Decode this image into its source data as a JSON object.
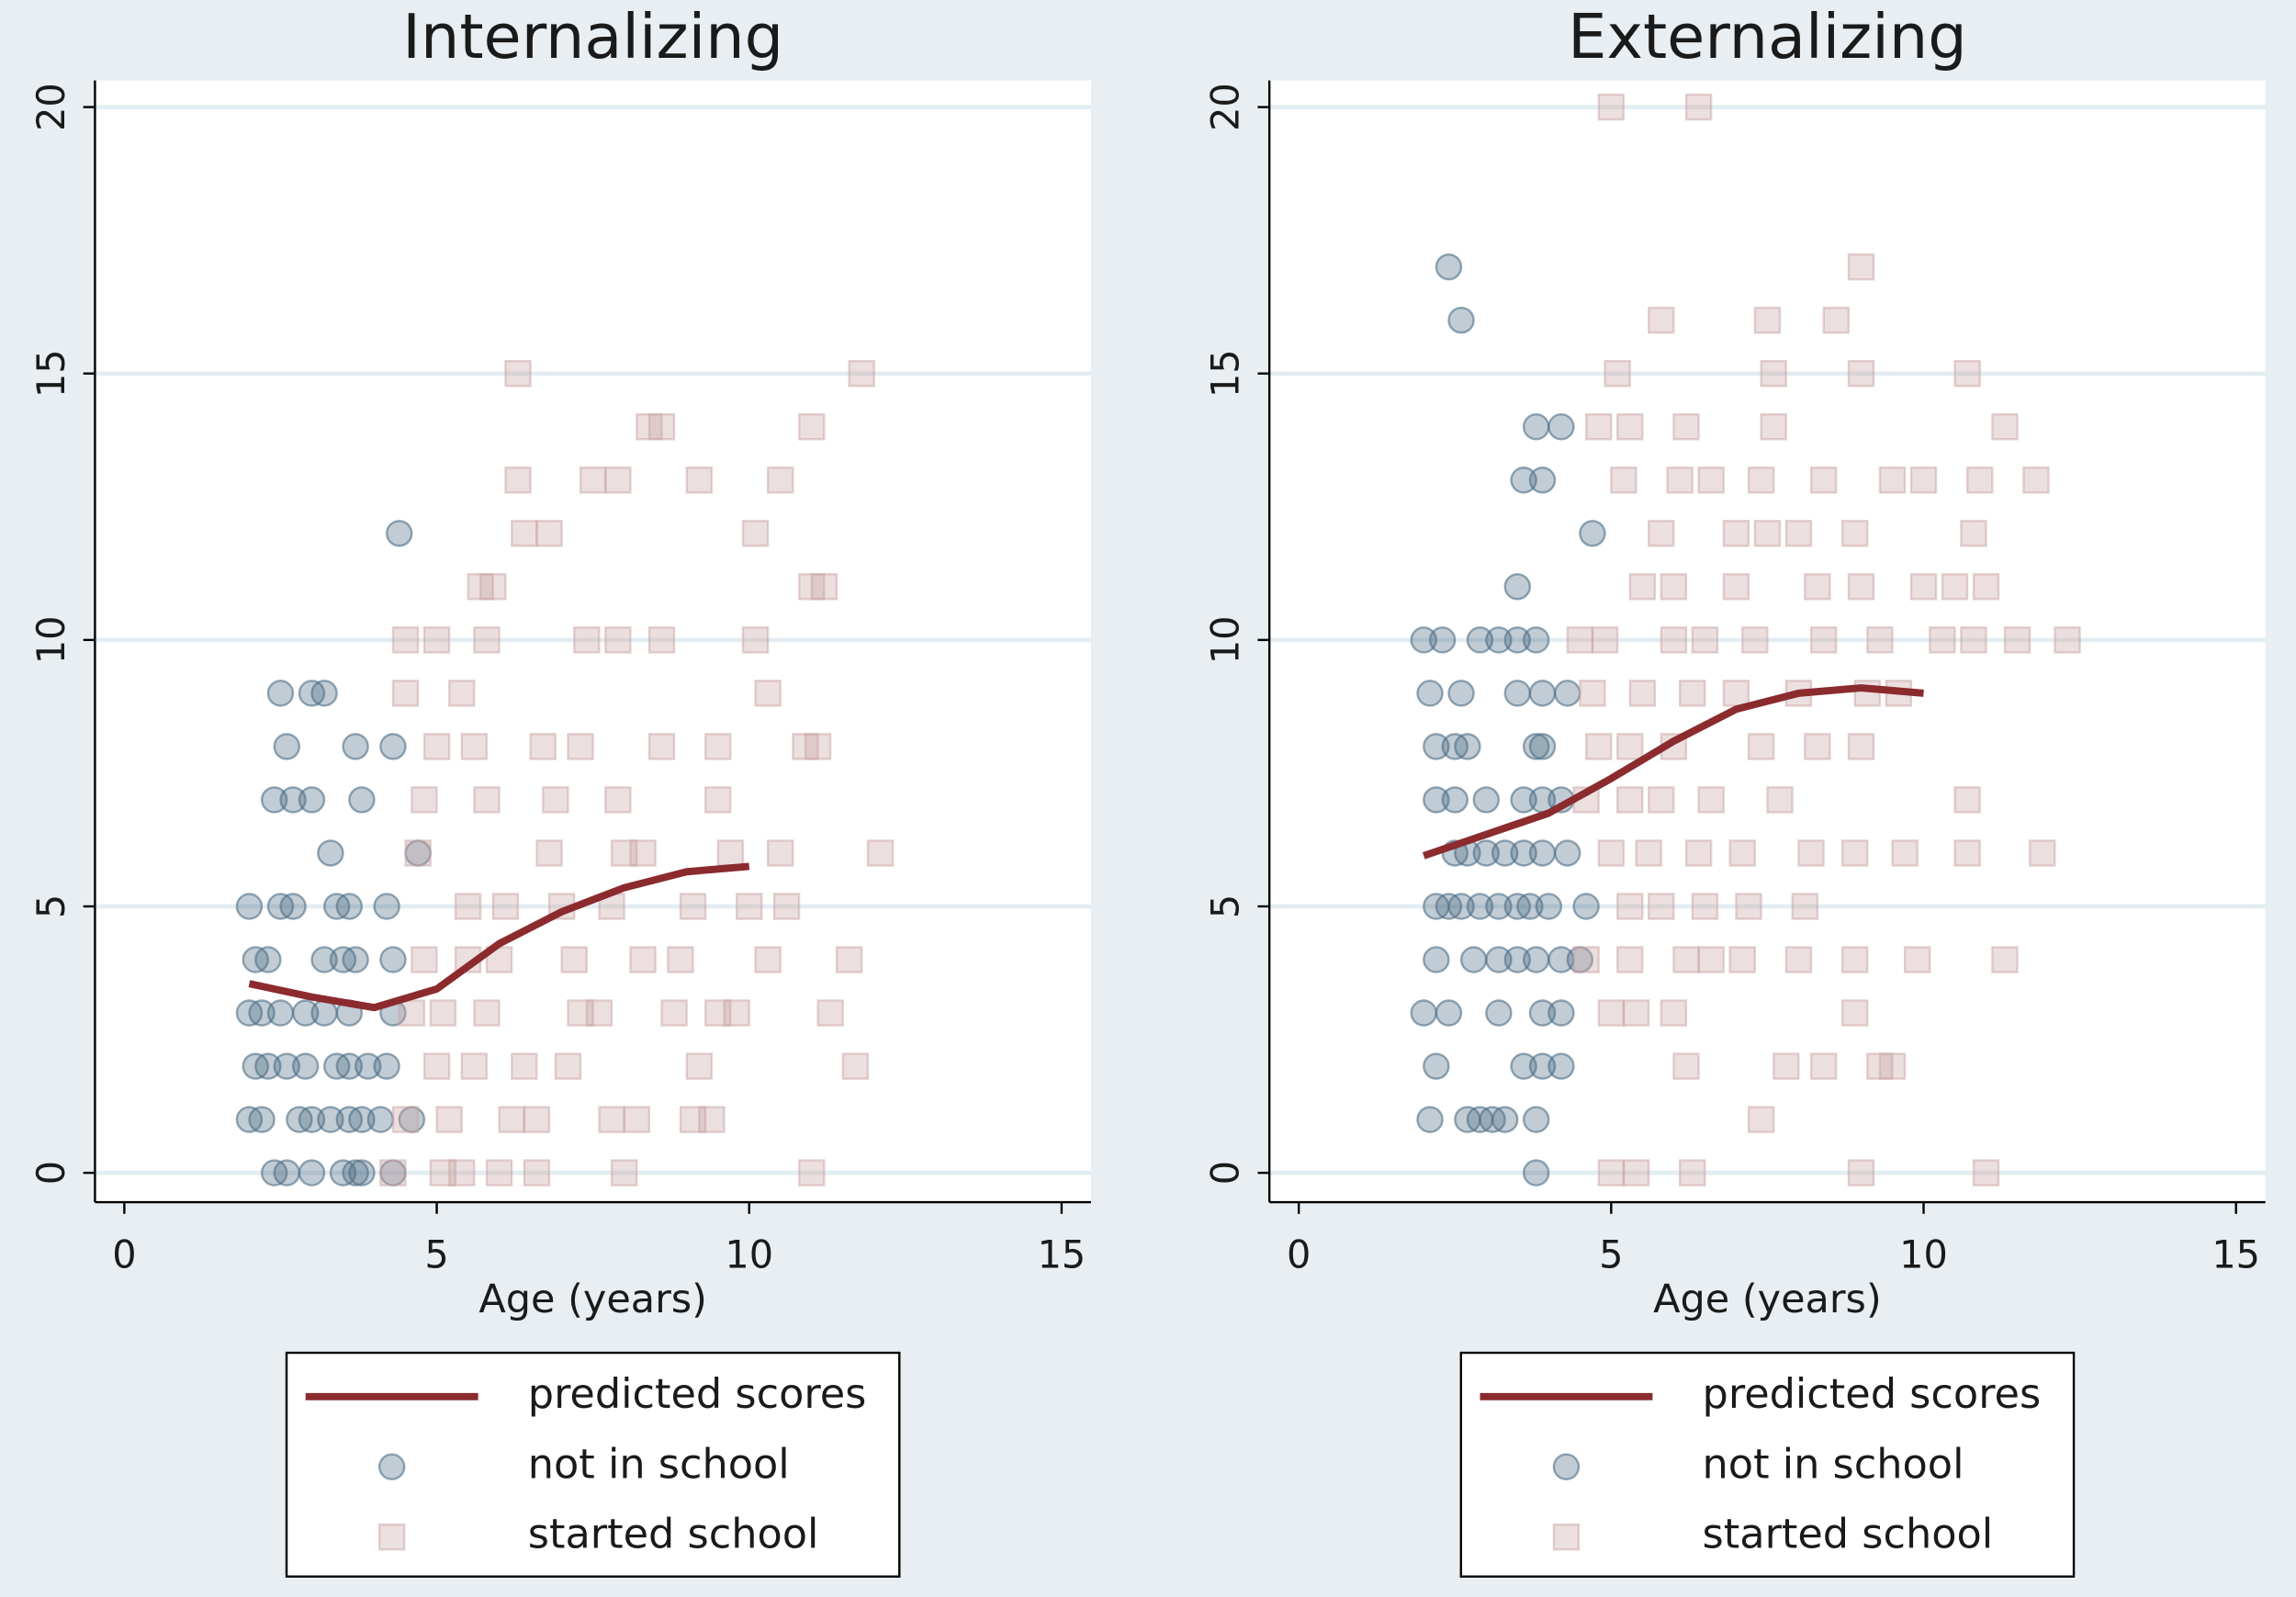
{
  "chart_data": [
    {
      "type": "scatter",
      "title": "Internalizing",
      "x_label": "Age (years)",
      "xlim": [
        -0.47,
        15.47
      ],
      "ylim": [
        -0.55,
        20.5
      ],
      "xticks": [
        0,
        5,
        10,
        15
      ],
      "yticks": [
        0,
        5,
        10,
        15,
        20
      ],
      "grid": true,
      "legend": "bottom",
      "series": [
        {
          "name": "predicted scores",
          "marker": "line",
          "color": "#8b2b2e",
          "x": [
            2,
            3,
            4,
            5,
            6,
            7,
            8,
            9,
            10
          ],
          "values": [
            3.55,
            3.3,
            3.1,
            3.45,
            4.3,
            4.9,
            5.35,
            5.65,
            5.75
          ]
        },
        {
          "name": "not in school",
          "marker": "circle",
          "color": "#4e6e86",
          "x": [
            2.4,
            2.6,
            3.0,
            3.5,
            3.7,
            3.8,
            4.3,
            2.0,
            2.2,
            2.8,
            3.0,
            3.3,
            3.6,
            3.8,
            4.1,
            4.6,
            2.1,
            2.3,
            2.6,
            2.9,
            3.4,
            3.6,
            3.9,
            4.2,
            2.0,
            2.2,
            2.5,
            2.9,
            3.2,
            3.6,
            4.3,
            2.1,
            2.3,
            3.2,
            3.5,
            3.7,
            4.3,
            2.0,
            2.5,
            2.7,
            3.4,
            3.6,
            4.2,
            3.3,
            4.7,
            2.4,
            2.7,
            3.0,
            3.8,
            2.6,
            3.7,
            4.3,
            2.5,
            3.0,
            3.2,
            4.4
          ],
          "values": [
            0,
            0,
            0,
            0,
            0,
            0,
            0,
            1,
            1,
            1,
            1,
            1,
            1,
            1,
            1,
            1,
            2,
            2,
            2,
            2,
            2,
            2,
            2,
            2,
            3,
            3,
            3,
            3,
            3,
            3,
            3,
            4,
            4,
            4,
            4,
            4,
            4,
            5,
            5,
            5,
            5,
            5,
            5,
            6,
            6,
            7,
            7,
            7,
            7,
            8,
            8,
            8,
            9,
            9,
            9,
            12
          ]
        },
        {
          "name": "started school",
          "marker": "square",
          "color": "#c9a3a3",
          "x": [
            4.3,
            5.1,
            5.4,
            6.0,
            6.6,
            8.0,
            11.0,
            4.5,
            5.2,
            6.2,
            6.6,
            7.8,
            8.2,
            9.1,
            9.4,
            5.0,
            5.6,
            6.4,
            7.1,
            9.2,
            11.7,
            4.6,
            5.1,
            5.8,
            7.3,
            7.6,
            8.8,
            9.5,
            9.8,
            11.3,
            4.8,
            5.5,
            6.0,
            7.2,
            8.3,
            8.9,
            10.3,
            11.6,
            5.5,
            6.1,
            7.0,
            7.8,
            9.1,
            10.0,
            10.6,
            4.7,
            6.8,
            8.0,
            8.3,
            9.7,
            10.5,
            12.1,
            4.8,
            5.8,
            6.9,
            7.9,
            9.5,
            5.0,
            5.6,
            6.7,
            7.3,
            8.6,
            9.5,
            10.9,
            11.1,
            4.5,
            5.4,
            10.3,
            4.5,
            5.0,
            5.8,
            7.4,
            7.9,
            8.6,
            10.1,
            5.7,
            5.9,
            11.0,
            11.2,
            6.4,
            6.8,
            10.1,
            6.3,
            7.5,
            7.9,
            9.2,
            10.5,
            8.4,
            8.6,
            11.0,
            6.3,
            11.8
          ],
          "values": [
            0,
            0,
            0,
            0,
            0,
            0,
            0,
            1,
            1,
            1,
            1,
            1,
            1,
            1,
            1,
            2,
            2,
            2,
            2,
            2,
            2,
            3,
            3,
            3,
            3,
            3,
            3,
            3,
            3,
            3,
            4,
            4,
            4,
            4,
            4,
            4,
            4,
            4,
            5,
            5,
            5,
            5,
            5,
            5,
            5,
            6,
            6,
            6,
            6,
            6,
            6,
            6,
            7,
            7,
            7,
            7,
            7,
            8,
            8,
            8,
            8,
            8,
            8,
            8,
            8,
            9,
            9,
            9,
            10,
            10,
            10,
            10,
            10,
            10,
            10,
            11,
            11,
            11,
            11,
            12,
            12,
            12,
            13,
            13,
            13,
            13,
            13,
            14,
            14,
            14,
            15,
            15
          ]
        }
      ]
    },
    {
      "type": "scatter",
      "title": "Externalizing",
      "x_label": "Age (years)",
      "xlim": [
        -0.47,
        15.47
      ],
      "ylim": [
        -0.55,
        20.5
      ],
      "xticks": [
        0,
        5,
        10,
        15
      ],
      "yticks": [
        0,
        5,
        10,
        15,
        20
      ],
      "grid": true,
      "legend": "bottom",
      "series": [
        {
          "name": "predicted scores",
          "marker": "line",
          "color": "#8b2b2e",
          "x": [
            2,
            3,
            4,
            5,
            6,
            7,
            8,
            9,
            10
          ],
          "values": [
            5.95,
            6.35,
            6.75,
            7.4,
            8.1,
            8.7,
            9.0,
            9.1,
            9.0
          ]
        },
        {
          "name": "not in school",
          "marker": "circle",
          "color": "#4e6e86",
          "x": [
            3.8,
            2.1,
            2.7,
            2.9,
            3.1,
            3.3,
            3.8,
            2.2,
            3.6,
            3.9,
            4.2,
            2.0,
            2.4,
            3.2,
            3.9,
            4.2,
            2.2,
            2.8,
            3.2,
            3.5,
            3.8,
            4.2,
            4.5,
            2.2,
            2.4,
            2.6,
            2.9,
            3.2,
            3.5,
            3.7,
            4.0,
            4.6,
            2.5,
            2.7,
            3.0,
            3.3,
            3.6,
            3.9,
            4.3,
            2.2,
            2.5,
            3.0,
            3.6,
            3.9,
            4.2,
            2.2,
            2.5,
            2.7,
            3.8,
            3.9,
            2.1,
            2.6,
            3.5,
            3.9,
            4.3,
            2.0,
            2.3,
            2.9,
            3.2,
            3.5,
            3.8,
            3.5,
            4.7,
            3.6,
            3.9,
            3.8,
            4.2,
            2.6,
            2.4
          ],
          "values": [
            0,
            1,
            1,
            1,
            1,
            1,
            1,
            2,
            2,
            2,
            2,
            3,
            3,
            3,
            3,
            3,
            4,
            4,
            4,
            4,
            4,
            4,
            4,
            5,
            5,
            5,
            5,
            5,
            5,
            5,
            5,
            5,
            6,
            6,
            6,
            6,
            6,
            6,
            6,
            7,
            7,
            7,
            7,
            7,
            7,
            8,
            8,
            8,
            8,
            8,
            9,
            9,
            9,
            9,
            9,
            10,
            10,
            10,
            10,
            10,
            10,
            11,
            12,
            13,
            13,
            14,
            14,
            16,
            17
          ]
        },
        {
          "name": "started school",
          "marker": "square",
          "color": "#c9a3a3",
          "x": [
            5.0,
            5.4,
            6.3,
            9.0,
            11.0,
            7.4,
            6.2,
            7.8,
            8.4,
            9.3,
            9.5,
            5.0,
            5.4,
            6.0,
            8.9,
            4.6,
            5.3,
            6.2,
            6.6,
            7.1,
            8.0,
            8.9,
            9.9,
            11.3,
            5.3,
            5.8,
            6.5,
            7.2,
            8.1,
            5.0,
            5.6,
            6.4,
            7.1,
            8.2,
            8.9,
            9.7,
            10.7,
            11.9,
            4.6,
            5.3,
            5.8,
            6.6,
            7.7,
            10.7,
            4.8,
            5.3,
            6.0,
            7.4,
            8.3,
            9.0,
            4.7,
            5.5,
            6.3,
            7.0,
            8.0,
            9.1,
            9.6,
            4.5,
            4.9,
            6.0,
            6.5,
            7.3,
            8.4,
            9.3,
            10.3,
            10.8,
            11.5,
            12.3,
            5.5,
            6.0,
            7.0,
            8.3,
            9.0,
            10.0,
            10.5,
            11.0,
            5.8,
            7.0,
            7.5,
            8.0,
            8.9,
            10.8,
            5.2,
            6.1,
            6.6,
            7.4,
            8.4,
            9.5,
            10.0,
            10.9,
            11.8,
            4.8,
            5.3,
            6.2,
            7.6,
            11.3,
            5.1,
            7.6,
            9.0,
            10.7,
            5.8,
            7.5,
            8.6,
            9.0,
            5.0,
            6.4
          ],
          "values": [
            0,
            0,
            0,
            0,
            0,
            1,
            2,
            2,
            2,
            2,
            2,
            3,
            3,
            3,
            3,
            4,
            4,
            4,
            4,
            4,
            4,
            4,
            4,
            4,
            5,
            5,
            5,
            5,
            5,
            6,
            6,
            6,
            6,
            6,
            6,
            6,
            6,
            6,
            7,
            7,
            7,
            7,
            7,
            7,
            8,
            8,
            8,
            8,
            8,
            8,
            9,
            9,
            9,
            9,
            9,
            9,
            9,
            10,
            10,
            10,
            10,
            10,
            10,
            10,
            10,
            10,
            10,
            10,
            11,
            11,
            11,
            11,
            11,
            11,
            11,
            11,
            12,
            12,
            12,
            12,
            12,
            12,
            13,
            13,
            13,
            13,
            13,
            13,
            13,
            13,
            13,
            14,
            14,
            14,
            14,
            14,
            15,
            15,
            15,
            15,
            16,
            16,
            16,
            17,
            20,
            20
          ]
        }
      ]
    }
  ]
}
